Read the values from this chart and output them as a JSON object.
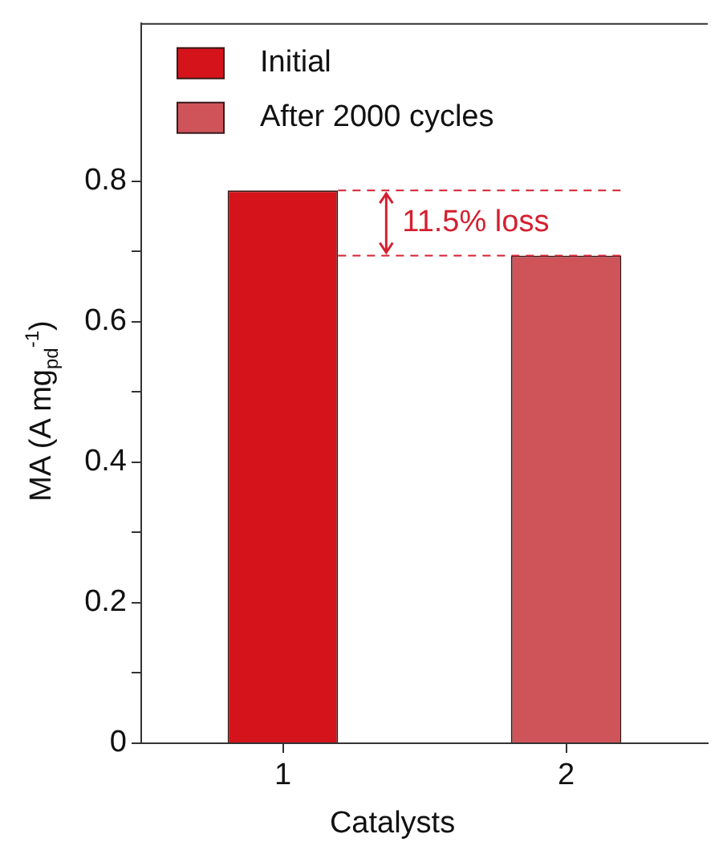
{
  "chart_data": {
    "type": "bar",
    "xlabel": "Catalysts",
    "ylabel": "MA (A mg$_{pd}$$^{-1}$)",
    "categories": [
      "1",
      "2"
    ],
    "series": [
      {
        "name": "Initial",
        "color": "#d4141a",
        "values": [
          0.787,
          null
        ]
      },
      {
        "name": "After 2000 cycles",
        "color": "#cf545a",
        "values": [
          null,
          0.694
        ]
      }
    ],
    "ylim": [
      0,
      1.025
    ],
    "yticks": [
      0,
      {
        "value": 0.1,
        "label": null
      },
      0.2,
      {
        "value": 0.3,
        "label": null
      },
      0.4,
      {
        "value": 0.5,
        "label": null
      },
      0.6,
      {
        "value": 0.7,
        "label": null
      },
      0.8
    ],
    "ref_lines": [
      {
        "axis": "y",
        "value": 0.787,
        "color": "#d42030",
        "line_style": "dashed"
      },
      {
        "axis": "y",
        "value": 0.694,
        "color": "#d42030",
        "line_style": "dashed"
      }
    ],
    "annotations": [
      "11.5% loss"
    ],
    "legend": "top left",
    "grid": false
  }
}
